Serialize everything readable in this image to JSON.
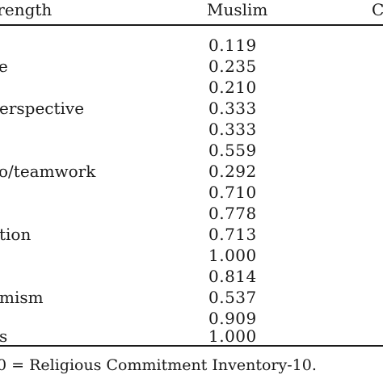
{
  "table": {
    "header": {
      "strength": "strength",
      "muslim": "Muslim",
      "extra": "C"
    },
    "rows": [
      {
        "label": "",
        "value": "0.119"
      },
      {
        "label": "e",
        "value": "0.235"
      },
      {
        "label": "",
        "value": "0.210"
      },
      {
        "label": "erspective",
        "value": "0.333"
      },
      {
        "label": "",
        "value": "0.333"
      },
      {
        "label": "",
        "value": "0.559"
      },
      {
        "label": "o/teamwork",
        "value": "0.292"
      },
      {
        "label": "",
        "value": "0.710"
      },
      {
        "label": "",
        "value": "0.778"
      },
      {
        "label": "tion",
        "value": "0.713"
      },
      {
        "label": "",
        "value": "1.000"
      },
      {
        "label": "",
        "value": "0.814"
      },
      {
        "label": "mism",
        "value": "0.537"
      },
      {
        "label": "",
        "value": "0.909"
      },
      {
        "label": "s",
        "value": "1.000"
      }
    ],
    "footnote": "0 = Religious Commitment Inventory-10."
  }
}
